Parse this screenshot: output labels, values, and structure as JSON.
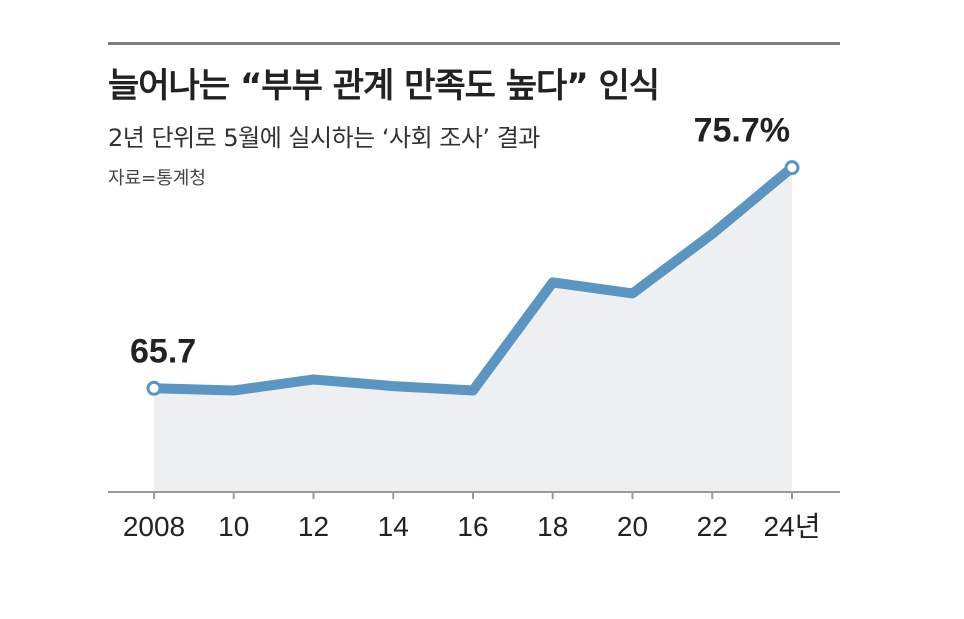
{
  "header": {
    "title": "늘어나는 “부부 관계 만족도 높다” 인식",
    "subtitle": "2년 단위로 5월에 실시하는 ‘사회 조사’ 결과",
    "source": "자료=통계청"
  },
  "colors": {
    "line": "#5b95c2",
    "area": "#eeeff1",
    "axis": "#9a9a9a",
    "marker_fill": "#ffffff"
  },
  "chart_data": {
    "type": "line",
    "title": "늘어나는 “부부 관계 만족도 높다” 인식",
    "subtitle": "2년 단위로 5월에 실시하는 ‘사회 조사’ 결과",
    "xlabel": "",
    "ylabel": "",
    "x": [
      "2008",
      "10",
      "12",
      "14",
      "16",
      "18",
      "20",
      "22",
      "24년"
    ],
    "series": [
      {
        "values": [
          65.7,
          65.6,
          66.1,
          65.8,
          65.6,
          70.5,
          70.0,
          72.7,
          75.7
        ]
      }
    ],
    "annotations": [
      {
        "index": 0,
        "text": "65.7"
      },
      {
        "index": 8,
        "text": "75.7%"
      }
    ],
    "ylim": [
      61,
      76.5
    ],
    "grid": false,
    "area_fill": true,
    "legend": "none"
  }
}
